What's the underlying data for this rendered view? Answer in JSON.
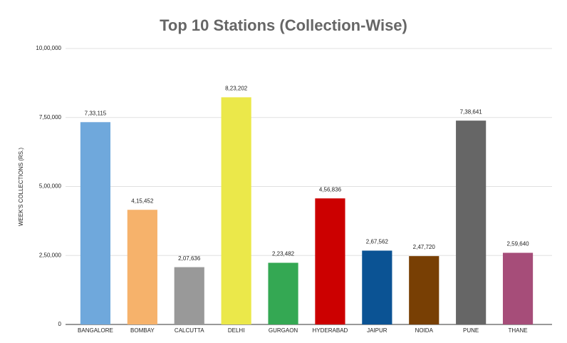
{
  "chart_data": {
    "type": "bar",
    "title": "Top 10 Stations (Collection-Wise)",
    "y_label": "WEEK'S COLLECTIONS (RS.)",
    "categories": [
      "BANGALORE",
      "BOMBAY",
      "CALCUTTA",
      "DELHI",
      "GURGAON",
      "HYDERABAD",
      "JAIPUR",
      "NOIDA",
      "PUNE",
      "THANE"
    ],
    "values": [
      733115,
      415452,
      207636,
      823202,
      223482,
      456836,
      267562,
      247720,
      738641,
      259640
    ],
    "value_labels": [
      "7,33,115",
      "4,15,452",
      "2,07,636",
      "8,23,202",
      "2,23,482",
      "4,56,836",
      "2,67,562",
      "2,47,720",
      "7,38,641",
      "2,59,640"
    ],
    "colors": [
      "#6fa8dc",
      "#f6b26b",
      "#999999",
      "#ebe84a",
      "#34a853",
      "#cc0000",
      "#0b5394",
      "#783f04",
      "#666666",
      "#a64d79"
    ],
    "ylim": [
      0,
      1000000
    ],
    "yticks": [
      0,
      {
        "value": 250000,
        "label": "2,50,000"
      },
      {
        "value": 500000,
        "label": "5,00,000"
      },
      {
        "value": 750000,
        "label": "7,50,000"
      },
      {
        "value": 1000000,
        "label": "10,00,000"
      }
    ],
    "grid": true
  }
}
